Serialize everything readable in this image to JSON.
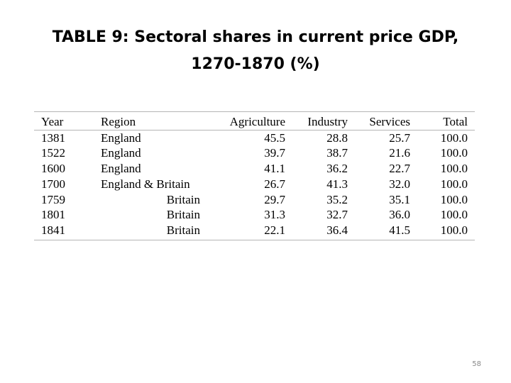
{
  "slide": {
    "title": "TABLE 9: Sectoral shares in current price GDP, 1270-1870 (%)",
    "page_number": "58"
  },
  "table": {
    "headers": {
      "year": "Year",
      "region": "Region",
      "agriculture": "Agriculture",
      "industry": "Industry",
      "services": "Services",
      "total": "Total"
    },
    "rows": [
      {
        "year": "1381",
        "region": "England",
        "agriculture": "45.5",
        "industry": "28.8",
        "services": "25.7",
        "total": "100.0"
      },
      {
        "year": "1522",
        "region": "England",
        "agriculture": "39.7",
        "industry": "38.7",
        "services": "21.6",
        "total": "100.0"
      },
      {
        "year": "1600",
        "region": "England",
        "agriculture": "41.1",
        "industry": "36.2",
        "services": "22.7",
        "total": "100.0"
      },
      {
        "year": "1700",
        "region": "England & Britain",
        "agriculture": "26.7",
        "industry": "41.3",
        "services": "32.0",
        "total": "100.0"
      },
      {
        "year": "1759",
        "region": "Britain",
        "agriculture": "29.7",
        "industry": "35.2",
        "services": "35.1",
        "total": "100.0"
      },
      {
        "year": "1801",
        "region": "Britain",
        "agriculture": "31.3",
        "industry": "32.7",
        "services": "36.0",
        "total": "100.0"
      },
      {
        "year": "1841",
        "region": "Britain",
        "agriculture": "22.1",
        "industry": "36.4",
        "services": "41.5",
        "total": "100.0"
      }
    ]
  }
}
